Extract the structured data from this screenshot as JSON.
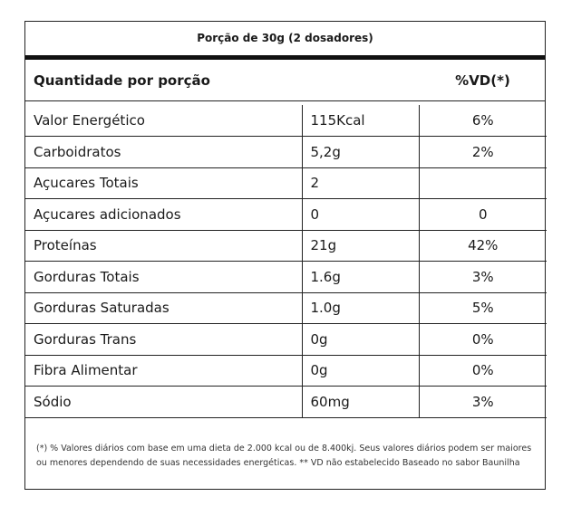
{
  "serving": "Porção de 30g (2 dosadores)",
  "header": {
    "left": "Quantidade por porção",
    "right": "%VD(*)"
  },
  "rows": [
    {
      "name": "Valor Energético",
      "amount": "115Kcal",
      "vd": "6%"
    },
    {
      "name": "Carboidratos",
      "amount": "5,2g",
      "vd": "2%"
    },
    {
      "name": "Açucares Totais",
      "amount": "2",
      "vd": ""
    },
    {
      "name": "Açucares adicionados",
      "amount": "0",
      "vd": "0"
    },
    {
      "name": "Proteínas",
      "amount": "21g",
      "vd": "42%"
    },
    {
      "name": "Gorduras Totais",
      "amount": "1.6g",
      "vd": "3%"
    },
    {
      "name": "Gorduras Saturadas",
      "amount": "1.0g",
      "vd": "5%"
    },
    {
      "name": "Gorduras Trans",
      "amount": "0g",
      "vd": "0%"
    },
    {
      "name": "Fibra Alimentar",
      "amount": "0g",
      "vd": "0%"
    },
    {
      "name": "Sódio",
      "amount": "60mg",
      "vd": "3%"
    }
  ],
  "footnote": "(*) % Valores diários com base em uma dieta de 2.000 kcal ou de 8.400kj. Seus valores diários podem ser maiores ou menores dependendo de suas necessidades energéticas. ** VD não estabelecido Baseado no sabor Baunilha"
}
